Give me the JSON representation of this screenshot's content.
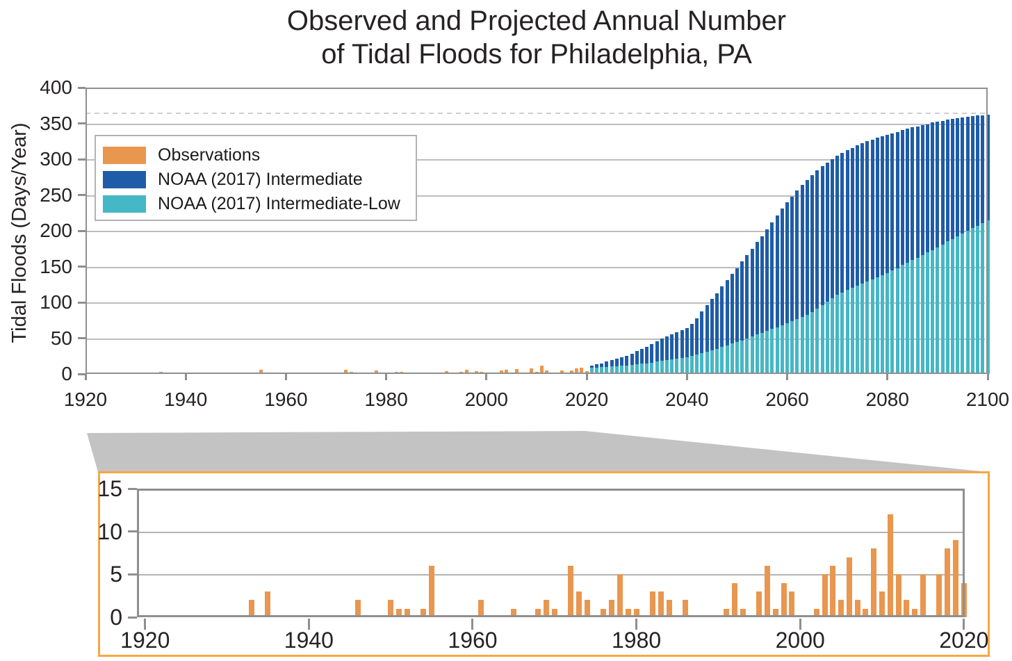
{
  "title": {
    "line1": "Observed and Projected Annual Number",
    "line2": "of Tidal Floods for Philadelphia, PA"
  },
  "legend": {
    "items": [
      {
        "label": "Observations",
        "color": "#E9964F"
      },
      {
        "label": "NOAA (2017) Intermediate",
        "color": "#1F5CA8"
      },
      {
        "label": "NOAA (2017) Intermediate-Low",
        "color": "#45B7C6"
      }
    ]
  },
  "colors": {
    "observations": "#E9964F",
    "intermediate": "#1F5CA8",
    "intermediate_low": "#45B7C6",
    "inset_border": "#F5A742",
    "callout_gray": "#C3C3C3",
    "grid_gray": "#BDBDBD",
    "spine_gray": "#8F8F8F"
  },
  "chart_data": [
    {
      "id": "main",
      "type": "bar",
      "title": "Observed and Projected Annual Number of Tidal Floods for Philadelphia, PA",
      "xlabel": "",
      "ylabel": "Tidal Floods (Days/Year)",
      "xlim": [
        1919,
        2101
      ],
      "ylim": [
        0,
        400
      ],
      "xticks": [
        1920,
        1940,
        1960,
        1980,
        2000,
        2020,
        2040,
        2060,
        2080,
        2100
      ],
      "yticks": [
        0,
        50,
        100,
        150,
        200,
        250,
        300,
        350,
        400
      ],
      "grid": true,
      "legend_position": "upper left",
      "reference_line": {
        "value": 365,
        "style": "dashed",
        "note": "days in a year ceiling"
      },
      "series": [
        {
          "name": "Observations",
          "color": "#E9964F",
          "coverage": "1920-2020, years not listed are 0",
          "years": [
            1933,
            1935,
            1946,
            1950,
            1951,
            1952,
            1954,
            1955,
            1961,
            1965,
            1968,
            1969,
            1970,
            1972,
            1973,
            1974,
            1976,
            1977,
            1978,
            1979,
            1980,
            1982,
            1983,
            1984,
            1986,
            1991,
            1992,
            1993,
            1995,
            1996,
            1997,
            1998,
            1999,
            2002,
            2003,
            2004,
            2005,
            2006,
            2007,
            2008,
            2009,
            2010,
            2011,
            2012,
            2013,
            2014,
            2015,
            2017,
            2018,
            2019,
            2020
          ],
          "values": [
            2,
            3,
            2,
            2,
            1,
            1,
            1,
            6,
            2,
            1,
            1,
            2,
            1,
            6,
            3,
            2,
            1,
            2,
            5,
            1,
            1,
            3,
            3,
            2,
            2,
            1,
            4,
            1,
            3,
            6,
            1,
            4,
            3,
            1,
            5,
            6,
            2,
            7,
            2,
            1,
            8,
            3,
            12,
            5,
            2,
            1,
            5,
            5,
            8,
            9,
            4
          ]
        },
        {
          "name": "NOAA (2017) Intermediate",
          "color": "#1F5CA8",
          "start_year": 2021,
          "end_year": 2100,
          "values": [
            12,
            14,
            15,
            17,
            19,
            21,
            23,
            25,
            28,
            32,
            35,
            38,
            42,
            46,
            50,
            52,
            55,
            58,
            61,
            64,
            70,
            78,
            87,
            96,
            105,
            113,
            122,
            131,
            140,
            148,
            157,
            166,
            175,
            184,
            192,
            202,
            212,
            221,
            231,
            240,
            248,
            256,
            264,
            271,
            278,
            284,
            290,
            295,
            300,
            305,
            309,
            313,
            316,
            319,
            322,
            325,
            327,
            330,
            332,
            334,
            336,
            338,
            341,
            343,
            345,
            346,
            348,
            349,
            351,
            352,
            353,
            355,
            356,
            357,
            358,
            359,
            360,
            361,
            361,
            362
          ]
        },
        {
          "name": "NOAA (2017) Intermediate-Low",
          "color": "#45B7C6",
          "start_year": 2021,
          "end_year": 2100,
          "values": [
            9,
            9,
            10,
            10,
            11,
            11,
            12,
            12,
            13,
            14,
            15,
            15,
            16,
            17,
            18,
            19,
            20,
            21,
            22,
            23,
            25,
            27,
            29,
            31,
            33,
            35,
            38,
            40,
            43,
            45,
            47,
            50,
            52,
            55,
            57,
            60,
            63,
            65,
            68,
            71,
            74,
            77,
            80,
            83,
            86,
            91,
            96,
            101,
            106,
            111,
            114,
            117,
            120,
            123,
            126,
            129,
            132,
            135,
            138,
            141,
            145,
            148,
            152,
            155,
            159,
            162,
            166,
            170,
            173,
            177,
            181,
            185,
            188,
            192,
            196,
            200,
            204,
            207,
            211,
            215
          ]
        }
      ]
    },
    {
      "id": "inset",
      "type": "bar",
      "title": "",
      "xlabel": "",
      "ylabel": "",
      "xlim": [
        1919,
        2020.3
      ],
      "ylim": [
        0,
        15
      ],
      "xticks": [
        1920,
        1940,
        1960,
        1980,
        2000,
        2020
      ],
      "yticks": [
        0,
        5,
        10,
        15
      ],
      "grid": true,
      "series": [
        {
          "name": "Observations",
          "color": "#E9964F",
          "coverage": "1920-2020, years not listed are 0",
          "years": [
            1933,
            1935,
            1946,
            1950,
            1951,
            1952,
            1954,
            1955,
            1961,
            1965,
            1968,
            1969,
            1970,
            1972,
            1973,
            1974,
            1976,
            1977,
            1978,
            1979,
            1980,
            1982,
            1983,
            1984,
            1986,
            1991,
            1992,
            1993,
            1995,
            1996,
            1997,
            1998,
            1999,
            2002,
            2003,
            2004,
            2005,
            2006,
            2007,
            2008,
            2009,
            2010,
            2011,
            2012,
            2013,
            2014,
            2015,
            2017,
            2018,
            2019,
            2020
          ],
          "values": [
            2,
            3,
            2,
            2,
            1,
            1,
            1,
            6,
            2,
            1,
            1,
            2,
            1,
            6,
            3,
            2,
            1,
            2,
            5,
            1,
            1,
            3,
            3,
            2,
            2,
            1,
            4,
            1,
            3,
            6,
            1,
            4,
            3,
            1,
            5,
            6,
            2,
            7,
            2,
            1,
            8,
            3,
            12,
            5,
            2,
            1,
            5,
            5,
            8,
            9,
            4
          ]
        }
      ]
    }
  ]
}
